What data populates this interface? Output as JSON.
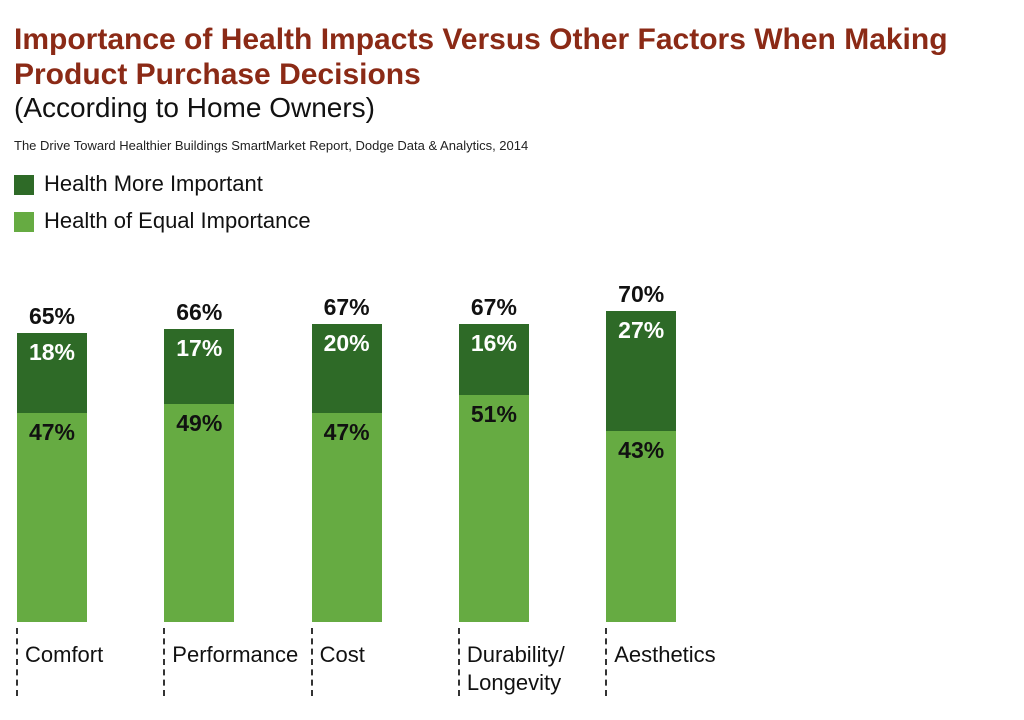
{
  "chart_data": {
    "type": "stacked-bar",
    "title": "Importance of Health Impacts Versus Other Factors When Making Product Purchase Decisions",
    "subtitle": "(According to Home Owners)",
    "source": "The Drive Toward Healthier Buildings SmartMarket Report, Dodge Data & Analytics, 2014",
    "categories": [
      "Comfort",
      "Performance",
      "Cost",
      "Durability/ Longevity",
      "Aesthetics"
    ],
    "series": [
      {
        "name": "Health of Equal Importance",
        "color": "#66ab42",
        "label_color": "#111111",
        "values": [
          47,
          49,
          47,
          51,
          43
        ],
        "value_labels": [
          "47%",
          "49%",
          "47%",
          "51%",
          "43%"
        ]
      },
      {
        "name": "Health More Important",
        "color": "#2e6a27",
        "label_color": "#ffffff",
        "values": [
          18,
          17,
          20,
          16,
          27
        ],
        "value_labels": [
          "18%",
          "17%",
          "20%",
          "16%",
          "27%"
        ]
      }
    ],
    "totals": {
      "values": [
        65,
        66,
        67,
        67,
        70
      ],
      "value_labels": [
        "65%",
        "66%",
        "67%",
        "67%",
        "70%"
      ]
    }
  }
}
